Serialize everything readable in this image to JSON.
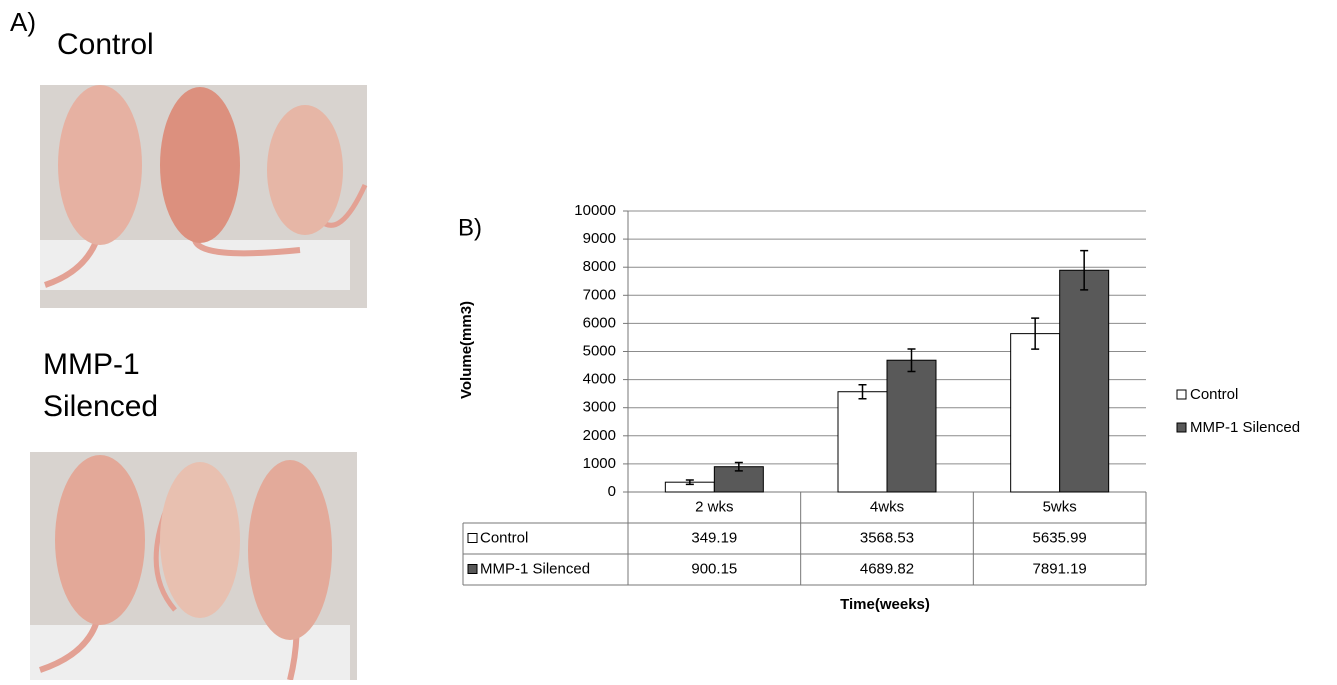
{
  "panel_a": {
    "label": "A)",
    "top_caption": "Control",
    "bottom_caption_lines": [
      "MMP-1",
      "Silenced"
    ]
  },
  "chart_data": {
    "type": "bar",
    "panel_label": "B)",
    "y_label": "Volume(mm3)",
    "x_label": "Time(weeks)",
    "categories": [
      "2 wks",
      "4wks",
      "5wks"
    ],
    "series": [
      {
        "name": "Control",
        "color": "#ffffff",
        "values": [
          349.19,
          3568.53,
          5635.99
        ],
        "errors": [
          80,
          250,
          550
        ]
      },
      {
        "name": "MMP-1 Silenced",
        "color": "#595959",
        "values": [
          900.15,
          4689.82,
          7891.19
        ],
        "errors": [
          150,
          400,
          700
        ]
      }
    ],
    "ylim": [
      0,
      10000
    ],
    "yticks": [
      0,
      1000,
      2000,
      3000,
      4000,
      5000,
      6000,
      7000,
      8000,
      9000,
      10000
    ],
    "grid": true,
    "legend": "right",
    "data_table": true
  }
}
